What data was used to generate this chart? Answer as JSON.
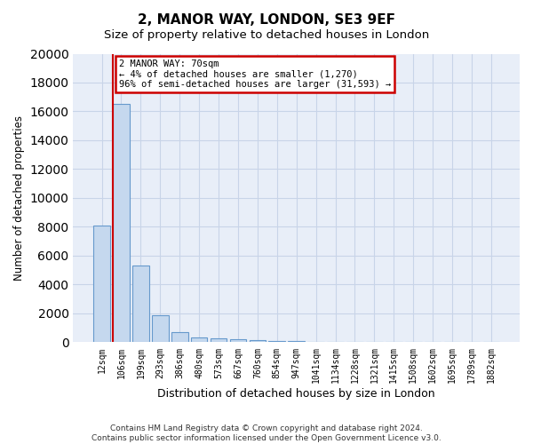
{
  "title1": "2, MANOR WAY, LONDON, SE3 9EF",
  "title2": "Size of property relative to detached houses in London",
  "xlabel": "Distribution of detached houses by size in London",
  "ylabel": "Number of detached properties",
  "categories": [
    "12sqm",
    "106sqm",
    "199sqm",
    "293sqm",
    "386sqm",
    "480sqm",
    "573sqm",
    "667sqm",
    "760sqm",
    "854sqm",
    "947sqm",
    "1041sqm",
    "1134sqm",
    "1228sqm",
    "1321sqm",
    "1415sqm",
    "1508sqm",
    "1602sqm",
    "1695sqm",
    "1789sqm",
    "1882sqm"
  ],
  "values": [
    8100,
    16500,
    5300,
    1850,
    700,
    350,
    280,
    200,
    150,
    100,
    60,
    40,
    30,
    20,
    15,
    10,
    8,
    6,
    5,
    4,
    3
  ],
  "bar_color": "#c5d8ee",
  "bar_edge_color": "#6699cc",
  "marker_line_color": "#cc0000",
  "annotation_line1": "2 MANOR WAY: 70sqm",
  "annotation_line2": "← 4% of detached houses are smaller (1,270)",
  "annotation_line3": "96% of semi-detached houses are larger (31,593) →",
  "annotation_box_color": "#ffffff",
  "annotation_box_edge": "#cc0000",
  "ylim": [
    0,
    20000
  ],
  "yticks": [
    0,
    2000,
    4000,
    6000,
    8000,
    10000,
    12000,
    14000,
    16000,
    18000,
    20000
  ],
  "grid_color": "#c8d4e8",
  "bg_color": "#e8eef8",
  "footer1": "Contains HM Land Registry data © Crown copyright and database right 2024.",
  "footer2": "Contains public sector information licensed under the Open Government Licence v3.0."
}
